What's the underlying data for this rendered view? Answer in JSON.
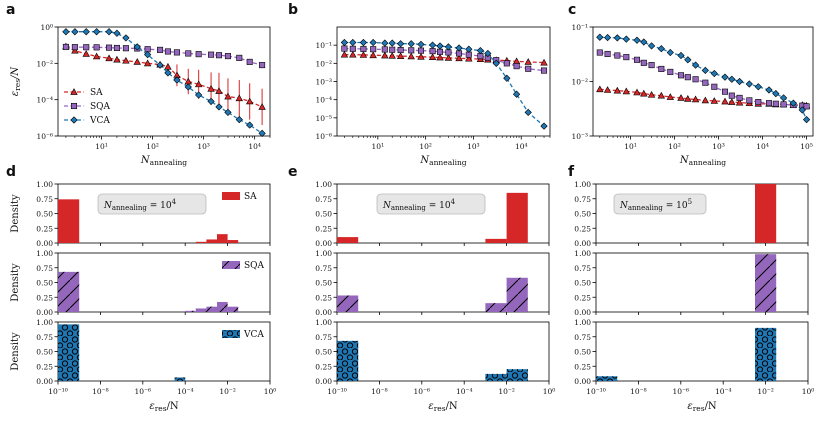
{
  "figure": {
    "panel_letters": [
      "a",
      "b",
      "c",
      "d",
      "e",
      "f"
    ]
  },
  "chart_data": [
    {
      "id": "a",
      "type": "line",
      "xscale": "log",
      "yscale": "log",
      "xlim": [
        1.4,
        20000
      ],
      "ylim": [
        1e-06,
        1
      ],
      "xlabel_main": "N",
      "xlabel_sub": "annealing",
      "ylabel_main": "ε",
      "ylabel_sub": "res",
      "ylabel_tail": "/N",
      "xticks": [
        10,
        100,
        1000,
        10000
      ],
      "yticks": [
        1e-06,
        0.0001,
        0.01,
        1
      ],
      "legend": {
        "position": "lower-left",
        "entries": [
          "SA",
          "SQA",
          "VCA"
        ]
      },
      "series": [
        {
          "name": "SA",
          "color": "#d62728",
          "marker": "triangle",
          "x": [
            2,
            3,
            5,
            8,
            14,
            20,
            30,
            50,
            80,
            140,
            200,
            300,
            500,
            800,
            1400,
            2000,
            3000,
            5000,
            8000,
            14000
          ],
          "y": [
            0.085,
            0.05,
            0.033,
            0.024,
            0.019,
            0.016,
            0.014,
            0.012,
            0.01,
            0.0085,
            0.0065,
            0.0022,
            0.001,
            0.0007,
            0.0004,
            0.0003,
            0.00015,
            0.00012,
            8e-05,
            4e-05
          ],
          "err": [
            0,
            0,
            0,
            0,
            0,
            0,
            0,
            0,
            0,
            0,
            0,
            0.6,
            0.7,
            0.8,
            0.9,
            1.0,
            1.0,
            1.0,
            1.0,
            1.0
          ]
        },
        {
          "name": "SQA",
          "color": "#9467bd",
          "marker": "square",
          "x": [
            2,
            3,
            5,
            8,
            14,
            20,
            30,
            50,
            80,
            140,
            200,
            300,
            500,
            800,
            1400,
            2000,
            3000,
            5000,
            8000,
            14000
          ],
          "y": [
            0.08,
            0.078,
            0.077,
            0.076,
            0.073,
            0.07,
            0.068,
            0.066,
            0.06,
            0.055,
            0.045,
            0.04,
            0.035,
            0.032,
            0.03,
            0.028,
            0.025,
            0.02,
            0.012,
            0.008
          ]
        },
        {
          "name": "VCA",
          "color": "#1f77b4",
          "marker": "diamond",
          "x": [
            2,
            3,
            5,
            8,
            14,
            20,
            30,
            50,
            80,
            140,
            200,
            300,
            500,
            800,
            1400,
            2000,
            3000,
            5000,
            8000,
            14000
          ],
          "y": [
            0.55,
            0.55,
            0.55,
            0.55,
            0.55,
            0.45,
            0.25,
            0.08,
            0.03,
            0.008,
            0.003,
            0.0012,
            0.0005,
            0.00018,
            8e-05,
            4e-05,
            2e-05,
            8e-06,
            4e-06,
            1.4e-06
          ]
        }
      ]
    },
    {
      "id": "b",
      "type": "line",
      "xscale": "log",
      "yscale": "log",
      "xlim": [
        1.4,
        40000
      ],
      "ylim": [
        1e-06,
        1
      ],
      "xlabel_main": "N",
      "xlabel_sub": "annealing",
      "xticks": [
        10,
        100,
        1000,
        10000
      ],
      "yticks": [
        1e-06,
        1e-05,
        0.0001,
        0.001,
        0.01,
        0.1
      ],
      "series": [
        {
          "name": "SA",
          "color": "#d62728",
          "marker": "triangle",
          "x": [
            2,
            3,
            5,
            8,
            14,
            20,
            30,
            50,
            80,
            140,
            200,
            300,
            500,
            800,
            1400,
            2000,
            3000,
            5000,
            8000,
            14000,
            30000
          ],
          "y": [
            0.03,
            0.03,
            0.029,
            0.028,
            0.027,
            0.026,
            0.025,
            0.024,
            0.023,
            0.022,
            0.021,
            0.02,
            0.019,
            0.018,
            0.017,
            0.016,
            0.015,
            0.014,
            0.013,
            0.012,
            0.011
          ]
        },
        {
          "name": "SQA",
          "color": "#9467bd",
          "marker": "square",
          "x": [
            2,
            3,
            5,
            8,
            14,
            20,
            30,
            50,
            80,
            140,
            200,
            300,
            500,
            800,
            1400,
            2000,
            3000,
            5000,
            8000,
            14000,
            30000
          ],
          "y": [
            0.065,
            0.063,
            0.062,
            0.06,
            0.058,
            0.056,
            0.054,
            0.052,
            0.05,
            0.047,
            0.043,
            0.04,
            0.035,
            0.03,
            0.025,
            0.02,
            0.015,
            0.01,
            0.007,
            0.005,
            0.004
          ]
        },
        {
          "name": "VCA",
          "color": "#1f77b4",
          "marker": "diamond",
          "x": [
            2,
            3,
            5,
            8,
            14,
            20,
            30,
            50,
            80,
            140,
            200,
            300,
            500,
            800,
            1400,
            2000,
            3000,
            5000,
            8000,
            14000,
            30000
          ],
          "y": [
            0.14,
            0.14,
            0.14,
            0.14,
            0.13,
            0.13,
            0.12,
            0.12,
            0.11,
            0.1,
            0.09,
            0.08,
            0.07,
            0.06,
            0.05,
            0.035,
            0.01,
            0.0015,
            0.0002,
            2e-05,
            3.5e-06
          ]
        }
      ]
    },
    {
      "id": "c",
      "type": "line",
      "xscale": "log",
      "yscale": "log",
      "xlim": [
        1.4,
        140000
      ],
      "ylim": [
        0.001,
        0.1
      ],
      "xlabel_main": "N",
      "xlabel_sub": "annealing",
      "xticks": [
        10,
        100,
        1000,
        10000,
        100000
      ],
      "yticks": [
        0.001,
        0.01,
        0.1
      ],
      "series": [
        {
          "name": "SA",
          "color": "#d62728",
          "marker": "triangle",
          "x": [
            2,
            3,
            5,
            8,
            14,
            20,
            30,
            50,
            80,
            140,
            200,
            300,
            500,
            800,
            1400,
            2000,
            3000,
            5000,
            8000,
            14000,
            20000,
            30000,
            50000,
            80000,
            100000
          ],
          "y": [
            0.0072,
            0.007,
            0.0068,
            0.0066,
            0.0063,
            0.006,
            0.0057,
            0.0055,
            0.0052,
            0.005,
            0.0048,
            0.0047,
            0.0045,
            0.0044,
            0.0043,
            0.0042,
            0.0041,
            0.004,
            0.0039,
            0.0039,
            0.0038,
            0.0038,
            0.0037,
            0.0037,
            0.0036
          ]
        },
        {
          "name": "SQA",
          "color": "#9467bd",
          "marker": "square",
          "x": [
            2,
            3,
            5,
            8,
            14,
            20,
            30,
            50,
            80,
            140,
            200,
            300,
            500,
            800,
            1400,
            2000,
            3000,
            5000,
            8000,
            14000,
            20000,
            30000,
            50000,
            80000,
            100000
          ],
          "y": [
            0.034,
            0.032,
            0.03,
            0.028,
            0.025,
            0.022,
            0.02,
            0.017,
            0.015,
            0.013,
            0.012,
            0.011,
            0.0095,
            0.008,
            0.0065,
            0.0055,
            0.005,
            0.0045,
            0.0042,
            0.004,
            0.0039,
            0.0038,
            0.0037,
            0.0036,
            0.0035
          ]
        },
        {
          "name": "VCA",
          "color": "#1f77b4",
          "marker": "diamond",
          "x": [
            2,
            3,
            5,
            8,
            14,
            20,
            30,
            50,
            80,
            140,
            200,
            300,
            500,
            800,
            1400,
            2000,
            3000,
            5000,
            8000,
            14000,
            20000,
            30000,
            50000,
            80000,
            100000
          ],
          "y": [
            0.065,
            0.064,
            0.063,
            0.06,
            0.057,
            0.053,
            0.045,
            0.04,
            0.034,
            0.03,
            0.025,
            0.02,
            0.016,
            0.014,
            0.012,
            0.011,
            0.01,
            0.009,
            0.008,
            0.007,
            0.006,
            0.005,
            0.004,
            0.003,
            0.002
          ]
        }
      ]
    },
    {
      "id": "d",
      "type": "bar",
      "xscale": "log",
      "xlim": [
        1e-10,
        1
      ],
      "ylim": [
        0,
        1
      ],
      "xlabel_main": "ε",
      "xlabel_sub": "res",
      "xlabel_tail": "/N",
      "ylabel": "Density",
      "xticks": [
        1e-10,
        1e-08,
        1e-06,
        0.0001,
        0.01,
        1
      ],
      "yticks": [
        0,
        0.25,
        0.5,
        0.75,
        1.0
      ],
      "annotation": {
        "main": "N",
        "sub": "annealing",
        "eq": " = 10",
        "exp": "4"
      },
      "rows": [
        {
          "name": "SA",
          "color": "#d62728",
          "hatch": "none",
          "bins": [
            {
              "lo": -10,
              "hi": -9,
              "h": 0.74
            },
            {
              "lo": -3.5,
              "hi": -3,
              "h": 0.02
            },
            {
              "lo": -3,
              "hi": -2.5,
              "h": 0.06
            },
            {
              "lo": -2.5,
              "hi": -2,
              "h": 0.15
            },
            {
              "lo": -2,
              "hi": -1.5,
              "h": 0.05
            }
          ]
        },
        {
          "name": "SQA",
          "color": "#9467bd",
          "hatch": "slash",
          "bins": [
            {
              "lo": -10,
              "hi": -9,
              "h": 0.68
            },
            {
              "lo": -4,
              "hi": -3.5,
              "h": 0.02
            },
            {
              "lo": -3.5,
              "hi": -3,
              "h": 0.06
            },
            {
              "lo": -3,
              "hi": -2.5,
              "h": 0.09
            },
            {
              "lo": -2.5,
              "hi": -2,
              "h": 0.17
            },
            {
              "lo": -2,
              "hi": -1.5,
              "h": 0.09
            }
          ]
        },
        {
          "name": "VCA",
          "color": "#1f77b4",
          "hatch": "circle",
          "bins": [
            {
              "lo": -10,
              "hi": -9,
              "h": 0.96
            },
            {
              "lo": -4.5,
              "hi": -4,
              "h": 0.06
            }
          ]
        }
      ]
    },
    {
      "id": "e",
      "type": "bar",
      "xscale": "log",
      "xlim": [
        1e-10,
        1
      ],
      "ylim": [
        0,
        1
      ],
      "xlabel_main": "ε",
      "xlabel_sub": "res",
      "xlabel_tail": "/N",
      "xticks": [
        1e-10,
        1e-08,
        1e-06,
        0.0001,
        0.01,
        1
      ],
      "yticks": [
        0,
        0.25,
        0.5,
        0.75,
        1.0
      ],
      "annotation": {
        "main": "N",
        "sub": "annealing",
        "eq": " = 10",
        "exp": "4"
      },
      "rows": [
        {
          "name": "SA",
          "color": "#d62728",
          "hatch": "none",
          "bins": [
            {
              "lo": -10,
              "hi": -9,
              "h": 0.1
            },
            {
              "lo": -3,
              "hi": -2,
              "h": 0.07
            },
            {
              "lo": -2,
              "hi": -1,
              "h": 0.85
            }
          ]
        },
        {
          "name": "SQA",
          "color": "#9467bd",
          "hatch": "slash",
          "bins": [
            {
              "lo": -10,
              "hi": -9,
              "h": 0.28
            },
            {
              "lo": -3,
              "hi": -2,
              "h": 0.15
            },
            {
              "lo": -2,
              "hi": -1,
              "h": 0.58
            }
          ]
        },
        {
          "name": "VCA",
          "color": "#1f77b4",
          "hatch": "circle",
          "bins": [
            {
              "lo": -10,
              "hi": -9,
              "h": 0.68
            },
            {
              "lo": -3,
              "hi": -2,
              "h": 0.12
            },
            {
              "lo": -2,
              "hi": -1,
              "h": 0.2
            }
          ]
        }
      ]
    },
    {
      "id": "f",
      "type": "bar",
      "xscale": "log",
      "xlim": [
        1e-10,
        1
      ],
      "ylim": [
        0,
        1
      ],
      "xlabel_main": "ε",
      "xlabel_sub": "res",
      "xlabel_tail": "/N",
      "xticks": [
        1e-10,
        1e-08,
        1e-06,
        0.0001,
        0.01,
        1
      ],
      "yticks": [
        0,
        0.25,
        0.5,
        0.75,
        1.0
      ],
      "annotation": {
        "main": "N",
        "sub": "annealing",
        "eq": " = 10",
        "exp": "5"
      },
      "rows": [
        {
          "name": "SA",
          "color": "#d62728",
          "hatch": "none",
          "bins": [
            {
              "lo": -2.5,
              "hi": -1.5,
              "h": 1.0
            }
          ]
        },
        {
          "name": "SQA",
          "color": "#9467bd",
          "hatch": "slash",
          "bins": [
            {
              "lo": -2.5,
              "hi": -1.5,
              "h": 0.98
            }
          ]
        },
        {
          "name": "VCA",
          "color": "#1f77b4",
          "hatch": "circle",
          "bins": [
            {
              "lo": -10,
              "hi": -9,
              "h": 0.08
            },
            {
              "lo": -2.5,
              "hi": -1.5,
              "h": 0.9
            }
          ]
        }
      ]
    }
  ]
}
